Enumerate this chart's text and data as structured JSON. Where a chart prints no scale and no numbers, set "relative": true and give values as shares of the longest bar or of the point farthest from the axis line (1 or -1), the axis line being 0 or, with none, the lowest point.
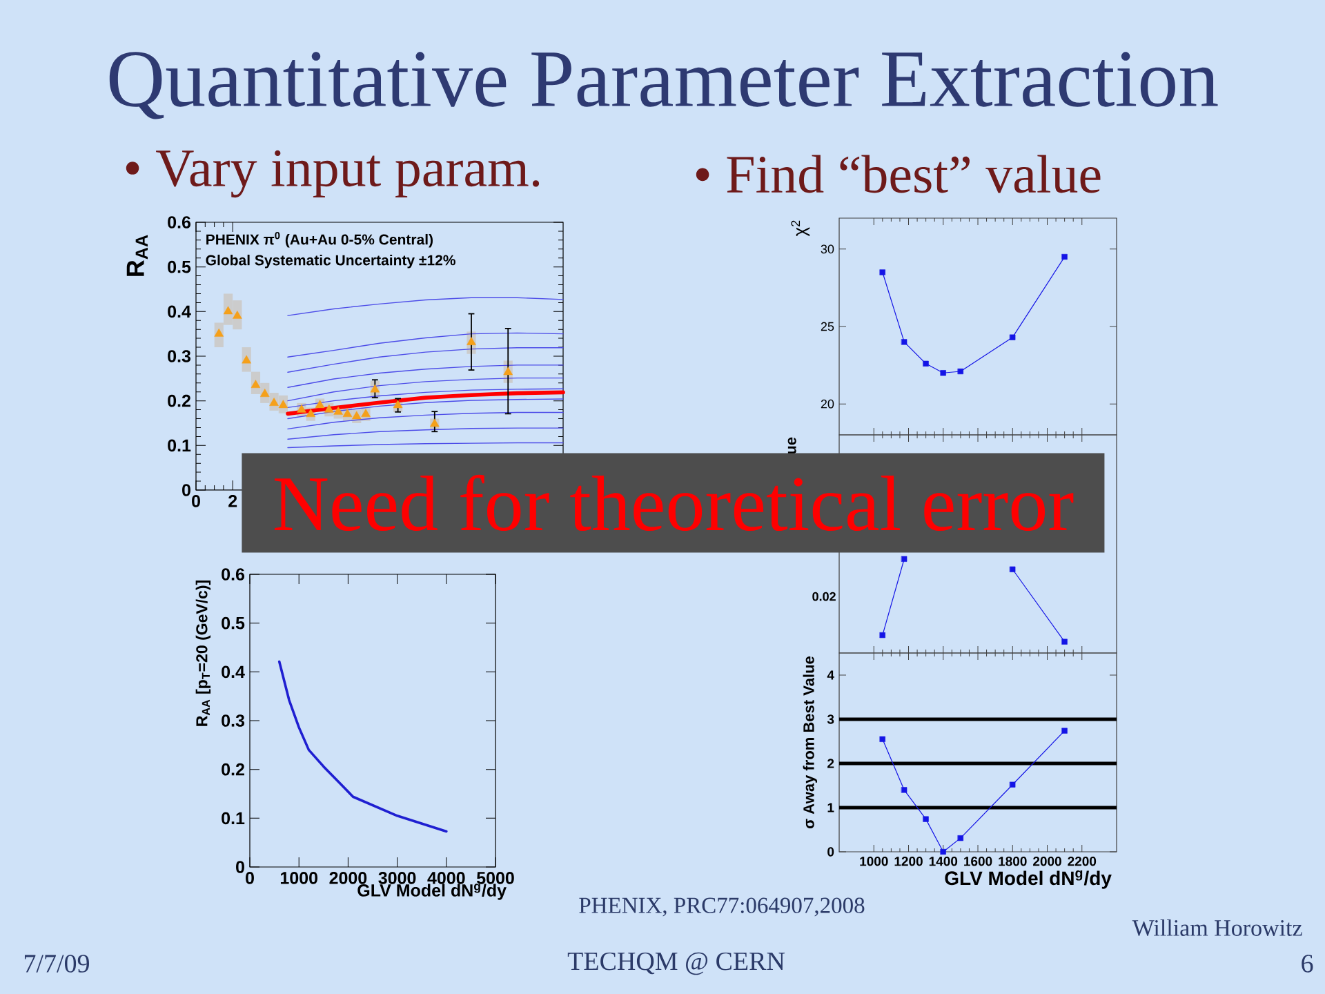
{
  "chart_data": [
    {
      "type": "other",
      "title": "Quantitative Parameter Extraction",
      "annotations": [
        "Need for theoretical error",
        "PHENIX, PRC77:064907,2008",
        "William Horowitz",
        "7/7/09",
        "TECHQM @ CERN",
        "6"
      ]
    },
    {
      "type": "line",
      "subtitle": "• Vary input param.",
      "ylabel": "R$_{AA}$",
      "annotations": [
        "PHENIX π$^{0}$ (Au+Au 0-5% Central)",
        "Global Systematic Uncertainty ±12%"
      ],
      "xlim": [
        0,
        20
      ],
      "xticks": [
        0,
        2
      ],
      "ylim": [
        0,
        0.6
      ],
      "yticks": [
        0,
        0.1,
        0.2,
        0.3,
        0.4,
        0.5,
        0.6
      ],
      "series": [
        {
          "type": "bar",
          "color": "#cccccc",
          "x": [
            1.25,
            1.75,
            2.25,
            2.75,
            3.25,
            3.75,
            4.25,
            4.75,
            5.75,
            6.25,
            6.75,
            7.25,
            7.75,
            8.25,
            8.75,
            9.25,
            9.75,
            11,
            13,
            15,
            17
          ],
          "base": [
            0.32,
            0.37,
            0.36,
            0.265,
            0.215,
            0.195,
            0.178,
            0.172,
            0.165,
            0.155,
            0.175,
            0.165,
            0.16,
            0.155,
            0.15,
            0.155,
            0.205,
            0.175,
            0.135,
            0.305,
            0.24
          ],
          "values": [
            0.055,
            0.07,
            0.065,
            0.055,
            0.05,
            0.045,
            0.04,
            0.04,
            0.03,
            0.03,
            0.03,
            0.03,
            0.03,
            0.03,
            0.03,
            0.03,
            0.04,
            0.03,
            0.025,
            0.05,
            0.05
          ]
        },
        {
          "type": "line",
          "color": "#4d4de8",
          "x": [
            5,
            7.5,
            10,
            12.5,
            15,
            17.5,
            20
          ],
          "values": [
            0.391,
            0.406,
            0.417,
            0.426,
            0.431,
            0.431,
            0.427
          ]
        },
        {
          "type": "line",
          "color": "#4d4de8",
          "x": [
            5,
            7.5,
            10,
            12.5,
            15,
            17.5,
            20
          ],
          "values": [
            0.298,
            0.313,
            0.329,
            0.341,
            0.35,
            0.352,
            0.35
          ]
        },
        {
          "type": "line",
          "color": "#4d4de8",
          "x": [
            5,
            7.5,
            10,
            12.5,
            15,
            17.5,
            20
          ],
          "values": [
            0.264,
            0.282,
            0.298,
            0.309,
            0.316,
            0.319,
            0.319
          ]
        },
        {
          "type": "line",
          "color": "#4d4de8",
          "x": [
            5,
            7.5,
            10,
            12.5,
            15,
            17.5,
            20
          ],
          "values": [
            0.23,
            0.249,
            0.262,
            0.271,
            0.277,
            0.28,
            0.28
          ]
        },
        {
          "type": "line",
          "color": "#4d4de8",
          "x": [
            5,
            7.5,
            10,
            12.5,
            15,
            17.5,
            20
          ],
          "values": [
            0.2,
            0.22,
            0.234,
            0.243,
            0.248,
            0.251,
            0.251
          ]
        },
        {
          "type": "line",
          "color": "#4d4de8",
          "x": [
            5,
            7.5,
            10,
            12.5,
            15,
            17.5,
            20
          ],
          "values": [
            0.185,
            0.2,
            0.211,
            0.219,
            0.224,
            0.226,
            0.227
          ]
        },
        {
          "type": "line",
          "color": "#4d4de8",
          "x": [
            5,
            7.5,
            10,
            12.5,
            15,
            17.5,
            20
          ],
          "values": [
            0.16,
            0.176,
            0.188,
            0.196,
            0.201,
            0.203,
            0.204
          ]
        },
        {
          "type": "line",
          "color": "#4d4de8",
          "x": [
            5,
            7.5,
            10,
            12.5,
            15,
            17.5,
            20
          ],
          "values": [
            0.137,
            0.152,
            0.162,
            0.168,
            0.172,
            0.174,
            0.174
          ]
        },
        {
          "type": "line",
          "color": "#4d4de8",
          "x": [
            5,
            7.5,
            10,
            12.5,
            15,
            17.5,
            20
          ],
          "values": [
            0.114,
            0.124,
            0.131,
            0.135,
            0.138,
            0.139,
            0.139
          ]
        },
        {
          "type": "line",
          "color": "#4d4de8",
          "x": [
            5,
            7.5,
            10,
            12.5,
            15,
            17.5,
            20
          ],
          "values": [
            0.095,
            0.099,
            0.102,
            0.104,
            0.105,
            0.106,
            0.106
          ]
        },
        {
          "type": "line",
          "color": "#ff0000",
          "x": [
            5,
            7.5,
            10,
            12.5,
            15,
            17.5,
            20
          ],
          "values": [
            0.171,
            0.184,
            0.196,
            0.207,
            0.213,
            0.217,
            0.219
          ]
        },
        {
          "type": "scatter",
          "color": "#f5a01a",
          "marker": "triangle",
          "x": [
            1.25,
            1.75,
            2.25,
            2.75,
            3.25,
            3.75,
            4.25,
            4.75,
            5.75,
            6.25,
            6.75,
            7.25,
            7.75,
            8.25,
            8.75,
            9.25,
            9.75,
            11,
            13,
            15,
            17
          ],
          "values": [
            0.35,
            0.4,
            0.39,
            0.29,
            0.235,
            0.215,
            0.195,
            0.19,
            0.18,
            0.17,
            0.19,
            0.18,
            0.175,
            0.17,
            0.165,
            0.17,
            0.225,
            0.19,
            0.148,
            0.331,
            0.264
          ],
          "errors": [
            null,
            null,
            null,
            null,
            null,
            null,
            null,
            null,
            null,
            null,
            null,
            null,
            null,
            null,
            null,
            null,
            [
              0.207,
              0.247
            ],
            [
              0.175,
              0.205
            ],
            [
              0.131,
              0.176
            ],
            [
              0.269,
              0.395
            ],
            [
              0.171,
              0.362
            ]
          ]
        }
      ]
    },
    {
      "type": "line",
      "xlabel": "GLV Model dN$^{g}$/dy",
      "ylabel": "R$_{AA}$ [p$_{T}$=20 (GeV/c)]",
      "x": [
        600,
        800,
        1000,
        1200,
        1500,
        1800,
        2100,
        3000,
        4000
      ],
      "values": [
        0.421,
        0.342,
        0.286,
        0.24,
        0.206,
        0.175,
        0.144,
        0.105,
        0.073
      ],
      "color": "#1f1fd1",
      "xlim": [
        0,
        5000
      ],
      "xticks": [
        0,
        1000,
        2000,
        3000,
        4000,
        5000
      ],
      "ylim": [
        0,
        0.6
      ],
      "yticks": [
        0,
        0.1,
        0.2,
        0.3,
        0.4,
        0.5,
        0.6
      ]
    },
    {
      "type": "line",
      "subtitle": "• Find “best” value",
      "ylabel": "χ$^{2}$",
      "marker": "square",
      "x": [
        1050,
        1175,
        1300,
        1400,
        1500,
        1800,
        2100
      ],
      "values": [
        28.5,
        24.0,
        22.6,
        22.0,
        22.1,
        24.3,
        29.5
      ],
      "color": "#1414e6",
      "xlim": [
        800,
        2400
      ],
      "xticks": [
        1000,
        1200,
        1400,
        1600,
        1800,
        2000,
        2200
      ],
      "ylim": [
        18,
        32
      ],
      "yticks": [
        20,
        25,
        30
      ],
      "tick_labels": "y"
    },
    {
      "type": "line",
      "ylabel": "ue",
      "relative": true,
      "marker": "square",
      "x": [
        1050,
        1175,
        1300,
        1400,
        1500,
        1800,
        2100
      ],
      "values": [
        0.19,
        1,
        null,
        null,
        null,
        0.89,
        0.12
      ],
      "color": "#1414e6",
      "xlim": [
        800,
        2400
      ],
      "xticks": [
        1000,
        1200,
        1400,
        1600,
        1800,
        2000,
        2200
      ],
      "tick_labels": false,
      "annotations": [
        "0.02"
      ]
    },
    {
      "type": "line",
      "xlabel": "GLV Model dN$^{g}$/dy",
      "ylabel": "σ Away from Best Value",
      "marker": "square",
      "x": [
        1050,
        1175,
        1300,
        1400,
        1500,
        1800,
        2100
      ],
      "values": [
        2.55,
        1.4,
        0.74,
        0,
        0.31,
        1.52,
        2.74
      ],
      "color": "#1414e6",
      "xlim": [
        800,
        2400
      ],
      "xticks": [
        1000,
        1200,
        1400,
        1600,
        1800,
        2000,
        2200
      ],
      "ylim": [
        0,
        4.5
      ],
      "yticks": [
        0,
        1,
        2,
        3,
        4
      ],
      "ref_lines": [
        {
          "axis": "y",
          "value": 1,
          "color": "#000000"
        },
        {
          "axis": "y",
          "value": 2,
          "color": "#000000"
        },
        {
          "axis": "y",
          "value": 3,
          "color": "#000000"
        }
      ]
    }
  ]
}
